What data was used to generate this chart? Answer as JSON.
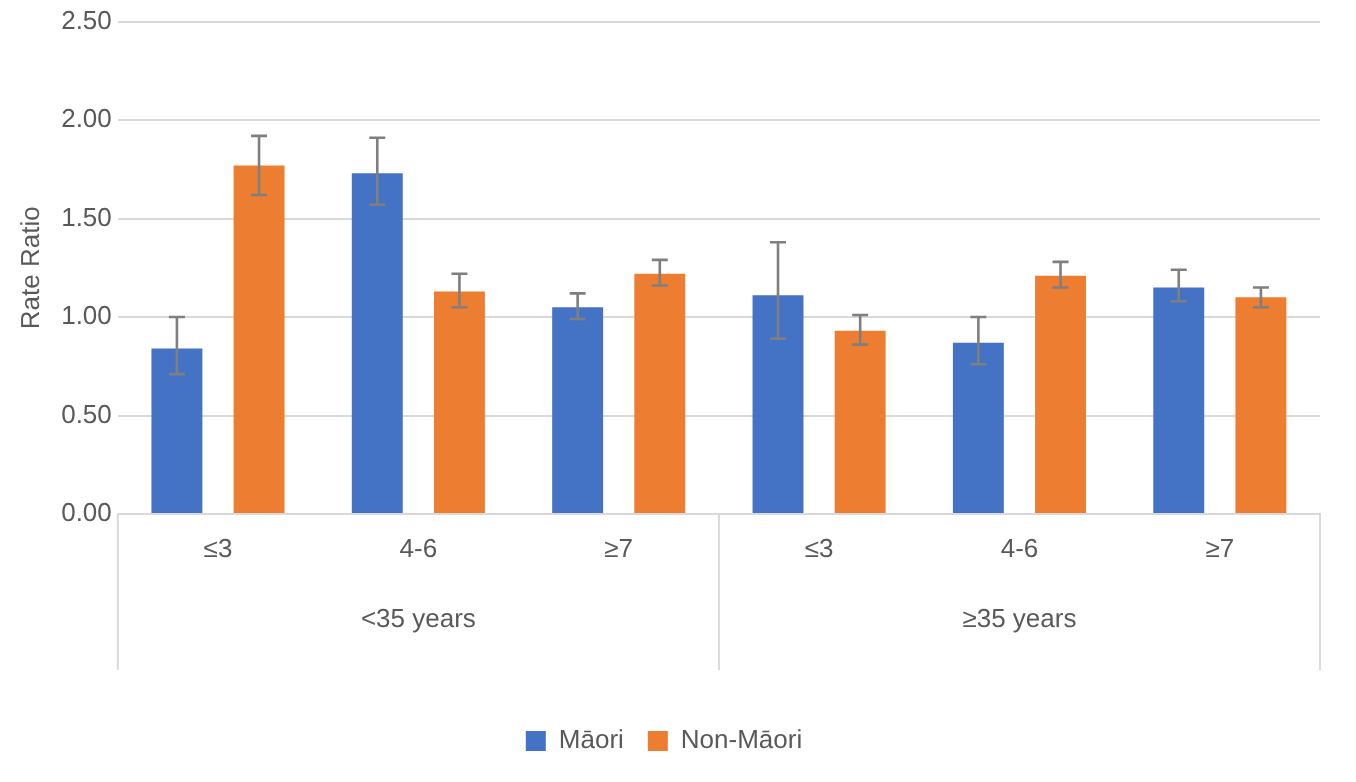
{
  "chart_data": {
    "type": "bar",
    "ylabel": "Rate Ratio",
    "categories": [
      "≤3",
      "4-6",
      "≥7",
      "≤3",
      "4-6",
      "≥7"
    ],
    "annotations": [
      "<35 years",
      "≥35 years"
    ],
    "series": [
      {
        "name": "Māori",
        "color": "#4472c4",
        "values": [
          0.84,
          1.73,
          1.05,
          1.11,
          0.87,
          1.15
        ],
        "errors": [
          [
            0.71,
            1.0
          ],
          [
            1.57,
            1.91
          ],
          [
            0.99,
            1.12
          ],
          [
            0.89,
            1.38
          ],
          [
            0.76,
            1.0
          ],
          [
            1.08,
            1.24
          ]
        ]
      },
      {
        "name": "Non-Māori",
        "color": "#ed7d31",
        "values": [
          1.77,
          1.13,
          1.22,
          0.93,
          1.21,
          1.1
        ],
        "errors": [
          [
            1.62,
            1.92
          ],
          [
            1.05,
            1.22
          ],
          [
            1.16,
            1.29
          ],
          [
            0.86,
            1.01
          ],
          [
            1.15,
            1.28
          ],
          [
            1.05,
            1.15
          ]
        ]
      }
    ],
    "ylim": [
      0,
      2.5
    ],
    "yticks": [
      {
        "value": 0,
        "label": "0.00"
      },
      {
        "value": 0.5,
        "label": "0.50"
      },
      {
        "value": 1,
        "label": "1.00"
      },
      {
        "value": 1.5,
        "label": "1.50"
      },
      {
        "value": 2,
        "label": "2.00"
      },
      {
        "value": 2.5,
        "label": "2.50"
      }
    ],
    "grid": "y",
    "legend": "bottom"
  }
}
